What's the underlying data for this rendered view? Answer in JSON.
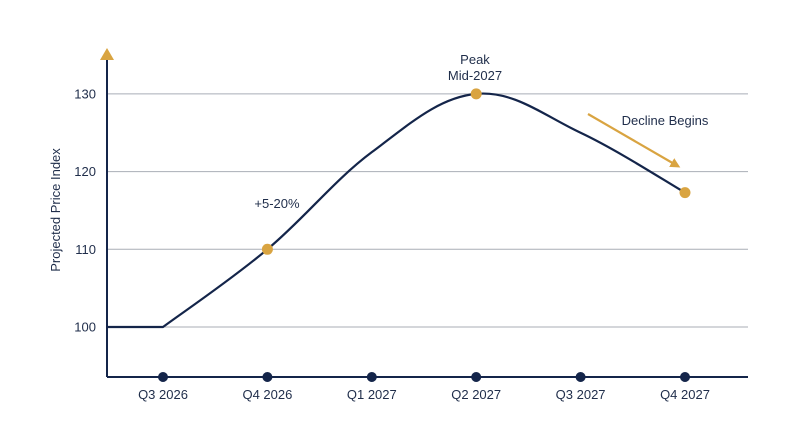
{
  "chart_data": {
    "type": "line",
    "ylabel": "Projected Price Index",
    "xlabel": "",
    "ylim": [
      94,
      137
    ],
    "yticks": [
      100,
      110,
      120,
      130
    ],
    "grid": "horizontal",
    "categories": [
      "Q3 2026",
      "Q4 2026",
      "Q1 2027",
      "Q2 2027",
      "Q3 2027",
      "Q4 2027"
    ],
    "series": [
      {
        "name": "",
        "points": [
          {
            "x": "start",
            "y": 100
          },
          {
            "x": "Q3 2026",
            "y": 100
          },
          {
            "x": "Q4 2026",
            "y": 110
          },
          {
            "x": "Q1 2027",
            "y": 122.5
          },
          {
            "x": "Q2 2027",
            "y": 130
          },
          {
            "x": "Q3 2027",
            "y": 125
          },
          {
            "x": "Q4 2027",
            "y": 117.3
          }
        ]
      }
    ],
    "highlight_points": [
      {
        "x": "Q4 2026",
        "y": 110
      },
      {
        "x": "Q2 2027",
        "y": 130
      },
      {
        "x": "Q4 2027",
        "y": 117.3
      }
    ],
    "annotations": {
      "growth": "+5-20%",
      "peak_line1": "Peak",
      "peak_line2": "Mid-2027",
      "decline": "Decline Begins"
    },
    "colors": {
      "line": "#14254a",
      "accent": "#d9a441",
      "grid": "#a9aeb6",
      "text": "#1f2d4a"
    }
  }
}
